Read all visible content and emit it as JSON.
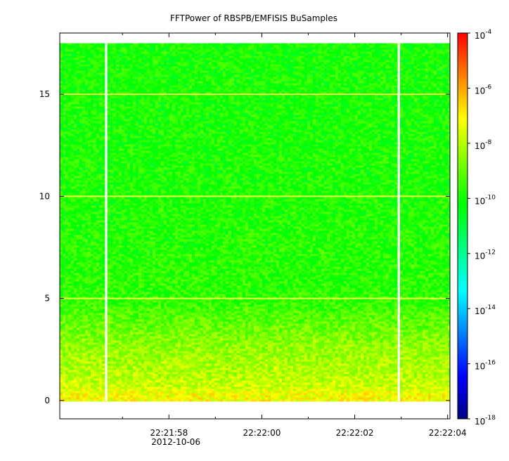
{
  "chart_data": {
    "type": "heatmap",
    "title": "FFTPower of RBSPB/EMFISIS  BuSamples",
    "xlabel": "",
    "ylabel": "",
    "x_ticks": [
      {
        "label": "22:21:58",
        "sublabel": "2012-10-06",
        "t": 1.5
      },
      {
        "label": "22:22:00",
        "t": 3.5
      },
      {
        "label": "22:22:02",
        "t": 5.5
      },
      {
        "label": "22:22:04",
        "t": 7.5
      }
    ],
    "x_minor_ticks": [
      0.5,
      2.5,
      4.5,
      6.5
    ],
    "xlim": [
      -0.85,
      7.55
    ],
    "ylim": [
      -0.9,
      18.0
    ],
    "y_ticks": [
      0,
      5,
      10,
      15
    ],
    "data_top": 17.5,
    "data_gaps": [
      0.15,
      6.45
    ],
    "gap_width": 0.05,
    "harmonic_lines_y": [
      5,
      10,
      15
    ],
    "zlog": true,
    "zlim": [
      -18,
      -4
    ],
    "z_ticks": [
      {
        "base": "10",
        "exp": "-4",
        "v": -4
      },
      {
        "base": "10",
        "exp": "-6",
        "v": -6
      },
      {
        "base": "10",
        "exp": "-8",
        "v": -8
      },
      {
        "base": "10",
        "exp": "-10",
        "v": -10
      },
      {
        "base": "10",
        "exp": "-12",
        "v": -12
      },
      {
        "base": "10",
        "exp": "-14",
        "v": -14
      },
      {
        "base": "10",
        "exp": "-16",
        "v": -16
      },
      {
        "base": "10",
        "exp": "-18",
        "v": -18
      }
    ],
    "power_profile": [
      {
        "f": 0.3,
        "log_power": -7.2
      },
      {
        "f": 0.6,
        "log_power": -7.7
      },
      {
        "f": 1.2,
        "log_power": -8.0
      },
      {
        "f": 2.5,
        "log_power": -8.4
      },
      {
        "f": 3.5,
        "log_power": -8.9
      },
      {
        "f": 5.0,
        "log_power": -9.7
      },
      {
        "f": 10.0,
        "log_power": -9.9
      },
      {
        "f": 17.5,
        "log_power": -10.0
      }
    ],
    "colors": {
      "colorbar": [
        "#000080",
        "#0000ff",
        "#0080ff",
        "#00ffff",
        "#00ff80",
        "#00ff00",
        "#80ff00",
        "#ffff00",
        "#ff8000",
        "#ff0000"
      ],
      "harmonic_line": "#f0ff40",
      "gap": "#ffffff"
    }
  }
}
